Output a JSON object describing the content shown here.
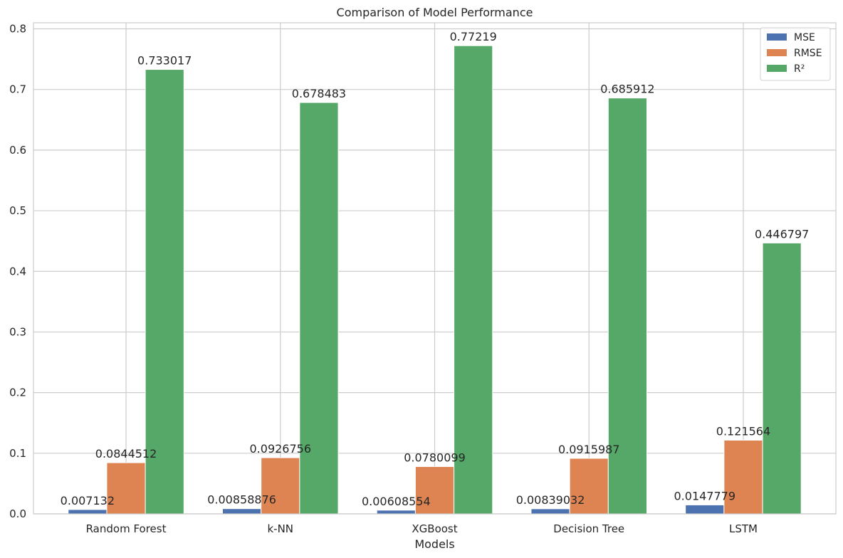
{
  "chart_data": {
    "type": "bar",
    "title": "Comparison of Model Performance",
    "xlabel": "Models",
    "ylabel": "",
    "ylim": [
      0,
      0.81
    ],
    "yticks": [
      "0.0",
      "0.1",
      "0.2",
      "0.3",
      "0.4",
      "0.5",
      "0.6",
      "0.7",
      "0.8"
    ],
    "grid": true,
    "legend_position": "top-right",
    "categories": [
      "Random Forest",
      "k-NN",
      "XGBoost",
      "Decision Tree",
      "LSTM"
    ],
    "series": [
      {
        "name": "MSE",
        "color": "#4c72b0",
        "values": [
          0.007132,
          0.00858876,
          0.00608554,
          0.00839032,
          0.0147779
        ],
        "labels": [
          "0.007132",
          "0.00858876",
          "0.00608554",
          "0.00839032",
          "0.0147779"
        ]
      },
      {
        "name": "RMSE",
        "color": "#dd8452",
        "values": [
          0.0844512,
          0.0926756,
          0.0780099,
          0.0915987,
          0.121564
        ],
        "labels": [
          "0.0844512",
          "0.0926756",
          "0.0780099",
          "0.0915987",
          "0.121564"
        ]
      },
      {
        "name": "R²",
        "color": "#55a868",
        "values": [
          0.733017,
          0.678483,
          0.77219,
          0.685912,
          0.446797
        ],
        "labels": [
          "0.733017",
          "0.678483",
          "0.77219",
          "0.685912",
          "0.446797"
        ]
      }
    ]
  }
}
